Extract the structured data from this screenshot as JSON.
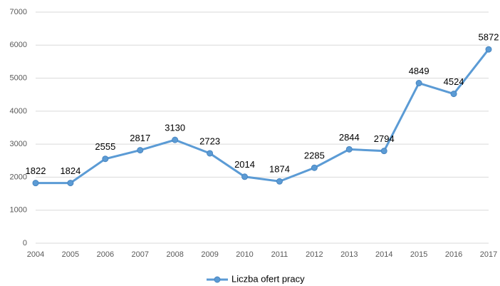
{
  "chart_data": {
    "type": "line",
    "categories": [
      "2004",
      "2005",
      "2006",
      "2007",
      "2008",
      "2009",
      "2010",
      "2011",
      "2012",
      "2013",
      "2014",
      "2015",
      "2016",
      "2017"
    ],
    "series": [
      {
        "name": "Liczba ofert pracy",
        "color": "#5b9bd5",
        "values": [
          1822,
          1824,
          2555,
          2817,
          3130,
          2723,
          2014,
          1874,
          2285,
          2844,
          2794,
          4849,
          4524,
          5872
        ]
      }
    ],
    "ylim": [
      0,
      7000
    ],
    "yticks": [
      0,
      1000,
      2000,
      3000,
      4000,
      5000,
      6000,
      7000
    ],
    "grid": true,
    "legend": "bottom"
  }
}
